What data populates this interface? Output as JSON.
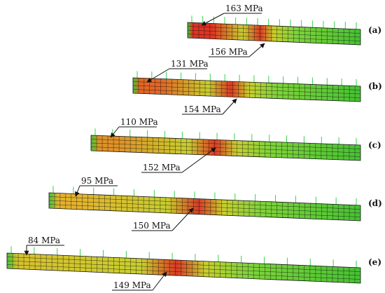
{
  "panels": [
    {
      "id": "a",
      "tag": "(a)",
      "left_label": "163 MPa",
      "right_label": "156 MPa",
      "left_color": "#e03323",
      "right_color": "#dc3a24"
    },
    {
      "id": "b",
      "tag": "(b)",
      "left_label": "131 MPa",
      "right_label": "154 MPa",
      "left_color": "#e36626",
      "right_color": "#dc3a24"
    },
    {
      "id": "c",
      "tag": "(c)",
      "left_label": "110 MPa",
      "right_label": "152 MPa",
      "left_color": "#e09228",
      "right_color": "#dc3a24"
    },
    {
      "id": "d",
      "tag": "(d)",
      "left_label": "95 MPa",
      "right_label": "150 MPa",
      "left_color": "#e5b22e",
      "right_color": "#dc3a24"
    },
    {
      "id": "e",
      "tag": "(e)",
      "left_label": "84 MPa",
      "right_label": "149 MPa",
      "left_color": "#d6c22e",
      "right_color": "#dc3a24"
    }
  ],
  "colors": {
    "mesh": "#111111",
    "base_green": "#45c232",
    "light_green": "#7fd43a",
    "yellow": "#c8cf2e",
    "support_ticks": "#36d24a"
  }
}
